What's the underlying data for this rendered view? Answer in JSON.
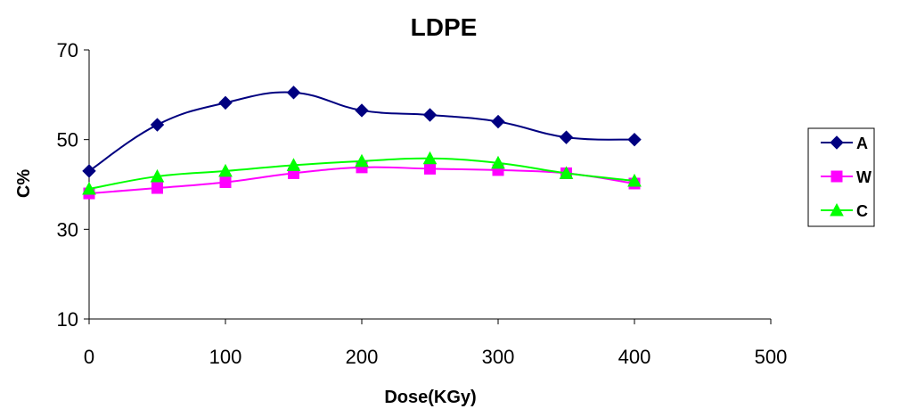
{
  "chart_data": {
    "type": "line",
    "title": "LDPE",
    "xlabel": "Dose(KGy)",
    "ylabel": "C%",
    "xlim": [
      0,
      500
    ],
    "ylim": [
      10,
      70
    ],
    "xticks": [
      0,
      100,
      200,
      300,
      400,
      500
    ],
    "yticks": [
      10,
      30,
      50,
      70
    ],
    "grid": false,
    "legend_position": "right",
    "x": [
      0,
      50,
      100,
      150,
      200,
      250,
      300,
      350,
      400
    ],
    "series": [
      {
        "name": "A",
        "marker": "diamond",
        "color": "#000080",
        "values": [
          43,
          53.3,
          58.2,
          60.5,
          56.5,
          55.5,
          54,
          50.5,
          50
        ]
      },
      {
        "name": "W",
        "marker": "square",
        "color": "#ff00ff",
        "values": [
          38,
          39.2,
          40.5,
          42.5,
          43.8,
          43.5,
          43.2,
          42.5,
          40.2
        ]
      },
      {
        "name": "C",
        "marker": "triangle",
        "color": "#00ff00",
        "values": [
          39,
          41.8,
          43,
          44.3,
          45.2,
          45.8,
          44.8,
          42.5,
          40.8
        ]
      }
    ]
  }
}
